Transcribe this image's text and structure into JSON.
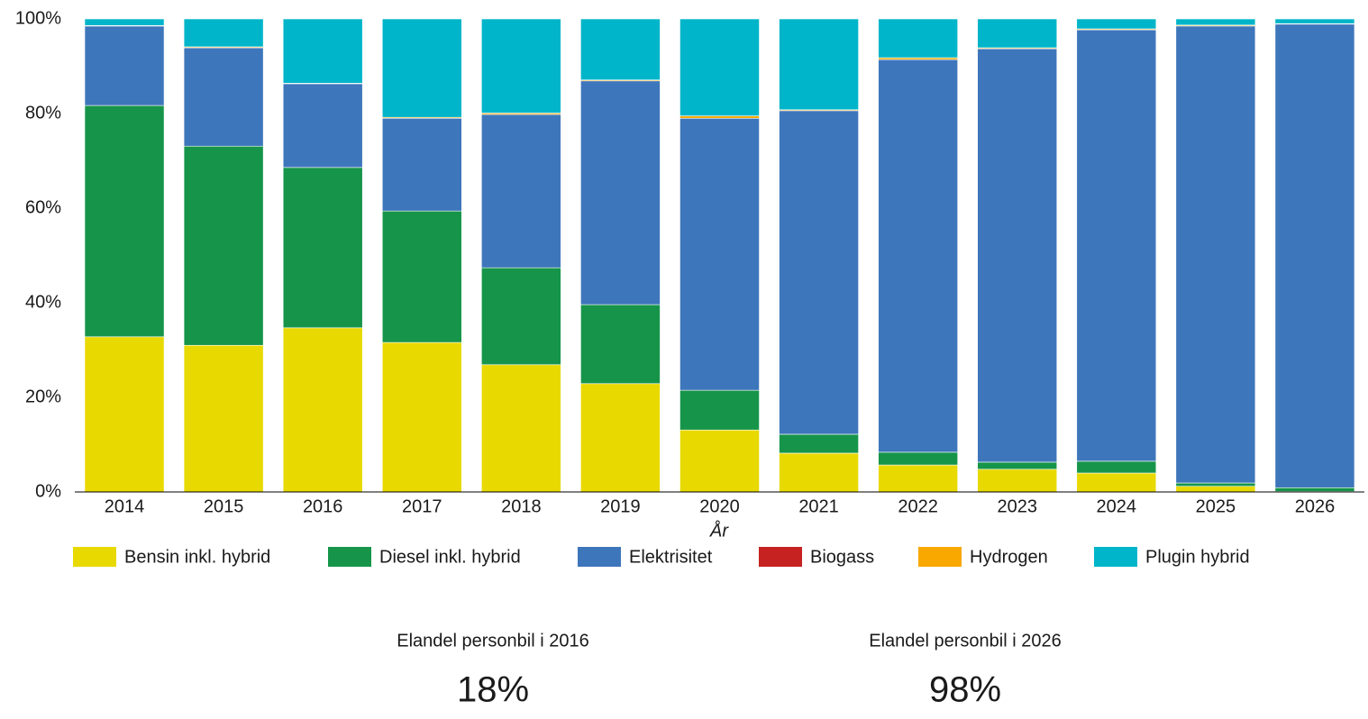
{
  "chart_data": {
    "type": "stacked_bar",
    "categories": [
      "2014",
      "2015",
      "2016",
      "2017",
      "2018",
      "2019",
      "2020",
      "2021",
      "2022",
      "2023",
      "2024",
      "2025",
      "2026"
    ],
    "series": [
      {
        "name": "Bensin inkl. hybrid",
        "color": "#e8d900",
        "values": [
          32.8,
          31.0,
          34.7,
          31.6,
          26.9,
          22.9,
          13.1,
          8.2,
          5.7,
          4.8,
          4.0,
          1.2,
          0.1
        ]
      },
      {
        "name": "Diesel inkl. hybrid",
        "color": "#16954a",
        "values": [
          48.9,
          42.1,
          33.9,
          27.8,
          20.5,
          16.7,
          8.4,
          4.0,
          2.7,
          1.5,
          2.5,
          0.7,
          0.8
        ]
      },
      {
        "name": "Elektrisitet",
        "color": "#3e76bb",
        "values": [
          16.8,
          20.8,
          17.7,
          19.6,
          32.4,
          47.3,
          57.5,
          68.4,
          83.0,
          87.4,
          91.2,
          96.6,
          98.0
        ]
      },
      {
        "name": "Biogass",
        "color": "#c62222",
        "values": [
          0,
          0,
          0,
          0,
          0,
          0,
          0,
          0,
          0,
          0,
          0,
          0,
          0
        ]
      },
      {
        "name": "Hydrogen",
        "color": "#f9a800",
        "values": [
          0.1,
          0.2,
          0.1,
          0.2,
          0.3,
          0.2,
          0.5,
          0.2,
          0.4,
          0.2,
          0.2,
          0.2,
          0.1
        ]
      },
      {
        "name": "Plugin hybrid",
        "color": "#00b5c9",
        "values": [
          1.4,
          5.9,
          13.6,
          20.8,
          19.9,
          12.9,
          20.5,
          19.2,
          8.2,
          6.1,
          2.1,
          1.3,
          1.0
        ]
      }
    ],
    "x_label": "År",
    "ylim": [
      0,
      100
    ],
    "yticks": [
      {
        "value": 0,
        "label": "0%"
      },
      {
        "value": 20,
        "label": "20%"
      },
      {
        "value": 40,
        "label": "40%"
      },
      {
        "value": 60,
        "label": "60%"
      },
      {
        "value": 80,
        "label": "80%"
      },
      {
        "value": 100,
        "label": "100%"
      }
    ],
    "grid": false
  },
  "kpis": [
    {
      "label": "Elandel personbil i 2016",
      "value": "18%"
    },
    {
      "label": "Elandel personbil i 2026",
      "value": "98%"
    }
  ]
}
